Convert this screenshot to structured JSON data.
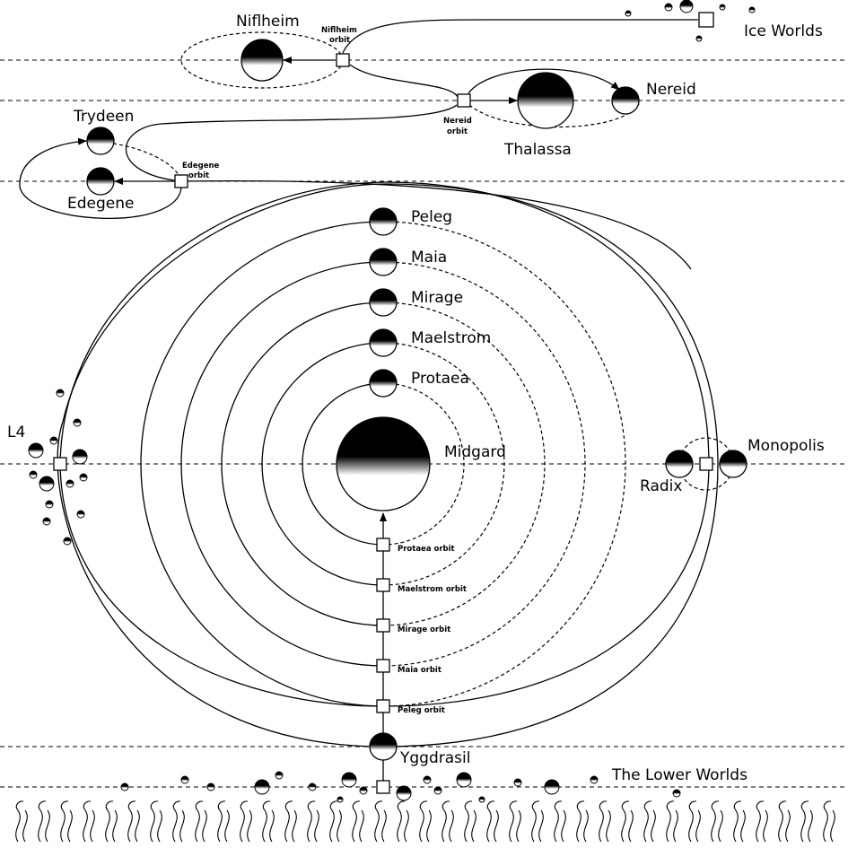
{
  "levels": {
    "ice": "Ice Worlds",
    "lower": "The Lower Worlds"
  },
  "worlds": {
    "niflheim": "Niflheim",
    "nereid": "Nereid",
    "thalassa": "Thalassa",
    "trydeen": "Trydeen",
    "edegene": "Edegene",
    "peleg": "Peleg",
    "maia": "Maia",
    "mirage": "Mirage",
    "maelstrom": "Maelstrom",
    "protaea": "Protaea",
    "midgard": "Midgard",
    "l4": "L4",
    "monopolis": "Monopolis",
    "radix": "Radix",
    "yggdrasil": "Yggdrasil"
  },
  "orbits": {
    "niflheim_line1": "Niflheim",
    "niflheim_line2": "orbit",
    "nereid_line1": "Nereid",
    "nereid_line2": "orbit",
    "edegene_line1": "Edegene",
    "edegene_line2": "orbit",
    "protaea": "Protaea orbit",
    "maelstrom": "Maelstrom orbit",
    "mirage": "Mirage orbit",
    "maia": "Maia orbit",
    "peleg": "Peleg orbit"
  }
}
